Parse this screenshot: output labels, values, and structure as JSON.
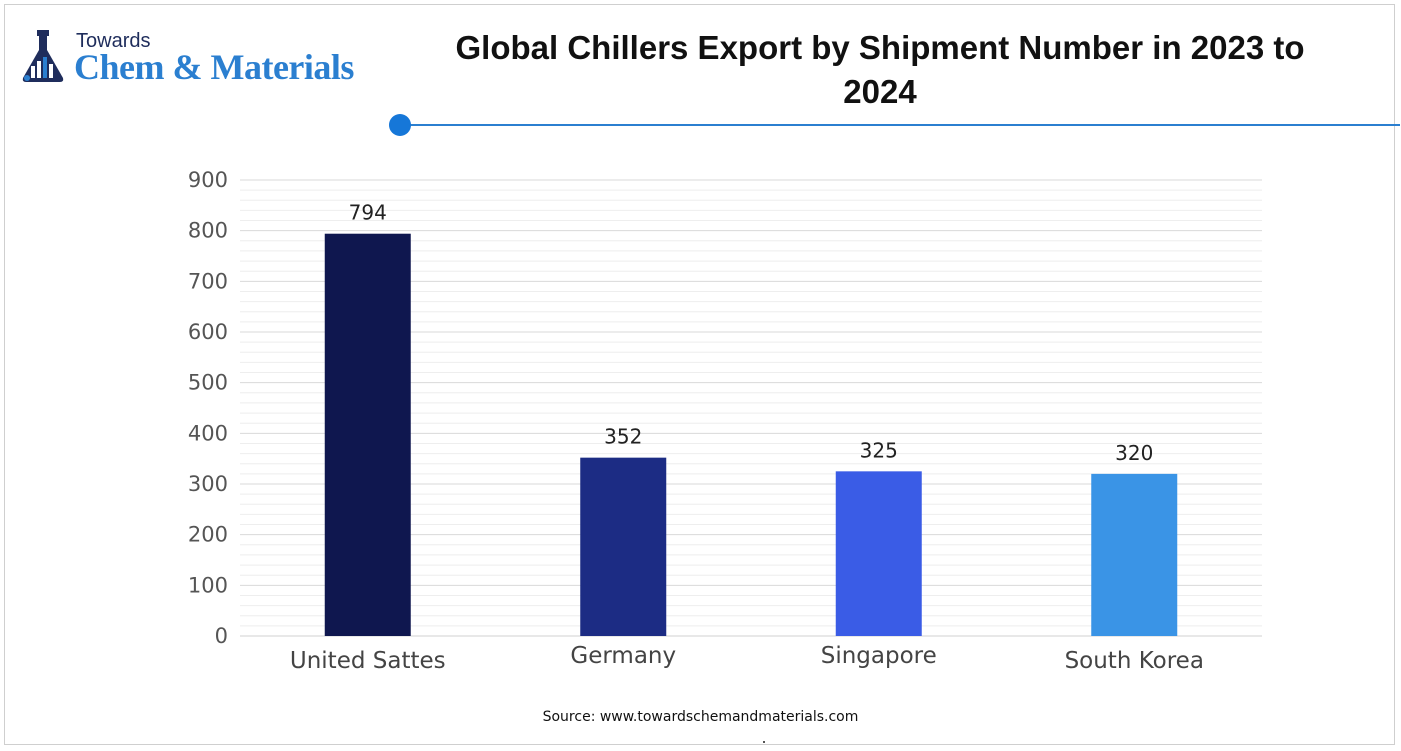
{
  "logo": {
    "top_text": "Towards",
    "main_text": "Chem & Materials"
  },
  "title": "Global Chillers Export by Shipment Number in 2023 to 2024",
  "source": "Source: www.towardschemandmaterials.com",
  "colors": {
    "accent": "#2b7fd0",
    "dot": "#1677d8"
  },
  "chart_data": {
    "type": "bar",
    "categories": [
      "United Sattes",
      "Germany",
      "Singapore",
      "South Korea"
    ],
    "values": [
      794,
      352,
      325,
      320
    ],
    "bar_colors": [
      "#0f174f",
      "#1c2c84",
      "#3a5ce6",
      "#3a94e6"
    ],
    "title": "Global Chillers Export by Shipment Number in 2023 to 2024",
    "xlabel": "",
    "ylabel": "",
    "ylim": [
      0,
      900
    ],
    "yticks": [
      0,
      100,
      200,
      300,
      400,
      500,
      600,
      700,
      800,
      900
    ],
    "grid": true,
    "legend": "none"
  }
}
